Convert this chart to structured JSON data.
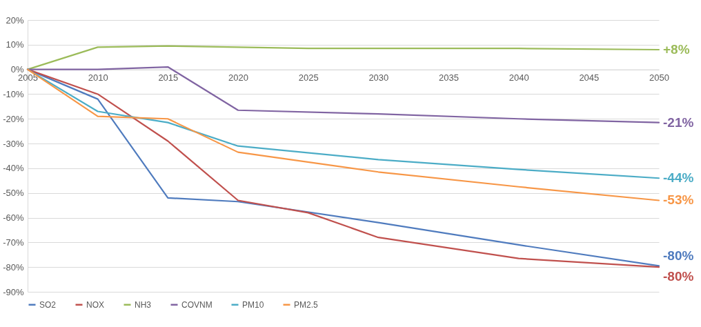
{
  "chart_data": {
    "type": "line",
    "series": [
      {
        "name": "SO2",
        "color": "#4f7bbe",
        "x": [
          2005,
          2010,
          2015,
          2020,
          2030,
          2040,
          2050
        ],
        "values": [
          0,
          -12,
          -52,
          -53.5,
          -62,
          -71,
          -79.5
        ]
      },
      {
        "name": "NOX",
        "color": "#c0504d",
        "x": [
          2005,
          2010,
          2015,
          2020,
          2025,
          2030,
          2040,
          2050
        ],
        "values": [
          0,
          -10,
          -29,
          -53,
          -58,
          -68,
          -76.5,
          -80
        ]
      },
      {
        "name": "NH3",
        "color": "#9bbb59",
        "x": [
          2005,
          2010,
          2015,
          2020,
          2025,
          2030,
          2040,
          2050
        ],
        "values": [
          0,
          9,
          9.5,
          9,
          8.5,
          8.5,
          8.5,
          8
        ]
      },
      {
        "name": "COVNM",
        "color": "#8064a2",
        "x": [
          2005,
          2010,
          2015,
          2020,
          2030,
          2040,
          2050
        ],
        "values": [
          0,
          0,
          1,
          -16.5,
          -18,
          -20,
          -21.5
        ]
      },
      {
        "name": "PM10",
        "color": "#4bacc6",
        "x": [
          2005,
          2010,
          2015,
          2020,
          2030,
          2040,
          2050
        ],
        "values": [
          0,
          -17,
          -21.5,
          -31,
          -36.5,
          -40.5,
          -44
        ]
      },
      {
        "name": "PM2.5",
        "color": "#f79646",
        "x": [
          2005,
          2010,
          2015,
          2020,
          2030,
          2040,
          2050
        ],
        "values": [
          0,
          -19,
          -20,
          -33.5,
          -41.5,
          -47.5,
          -53
        ]
      }
    ],
    "xlim": [
      2005,
      2050
    ],
    "xticks": [
      2005,
      2010,
      2015,
      2020,
      2025,
      2030,
      2035,
      2040,
      2045,
      2050
    ],
    "ylim": [
      -90,
      20
    ],
    "yticks": [
      {
        "value": 20,
        "label": "20%"
      },
      {
        "value": 10,
        "label": "10%"
      },
      {
        "value": 0,
        "label": "0%"
      },
      {
        "value": -10,
        "label": "-10%"
      },
      {
        "value": -20,
        "label": "-20%"
      },
      {
        "value": -30,
        "label": "-30%"
      },
      {
        "value": -40,
        "label": "-40%"
      },
      {
        "value": -50,
        "label": "-50%"
      },
      {
        "value": -60,
        "label": "-60%"
      },
      {
        "value": -70,
        "label": "-70%"
      },
      {
        "value": -80,
        "label": "-80%"
      },
      {
        "value": -90,
        "label": "-90%"
      }
    ],
    "grid": "y",
    "legend": "bottom",
    "marker": "none",
    "line_style": "solid",
    "annotations": [
      "-80%",
      "-80%",
      "+8%",
      "-21%",
      "-44%",
      "-53%"
    ]
  }
}
